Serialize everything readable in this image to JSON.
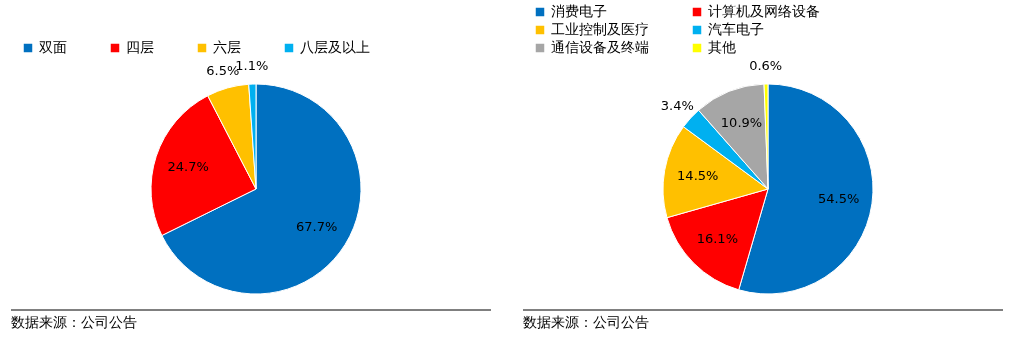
{
  "chart_data": [
    {
      "type": "pie",
      "categories": [
        "双面",
        "四层",
        "六层",
        "八层及以上"
      ],
      "values": [
        67.7,
        24.7,
        6.5,
        1.1
      ],
      "colors": [
        "#0070c0",
        "#ff0000",
        "#ffc000",
        "#00b0f0"
      ],
      "value_labels": [
        "67.7%",
        "24.7%",
        "6.5%",
        "1.1%"
      ],
      "legend": "top",
      "annotations": [
        "数据来源：公司公告"
      ]
    },
    {
      "type": "pie",
      "categories": [
        "消费电子",
        "计算机及网络设备",
        "工业控制及医疗",
        "汽车电子",
        "通信设备及终端",
        "其他"
      ],
      "values": [
        54.5,
        16.1,
        14.5,
        3.4,
        10.9,
        0.6
      ],
      "colors": [
        "#0070c0",
        "#ff0000",
        "#ffc000",
        "#00b0f0",
        "#a6a6a6",
        "#ffff00"
      ],
      "value_labels": [
        "54.5%",
        "16.1%",
        "14.5%",
        "3.4%",
        "10.9%",
        "0.6%"
      ],
      "legend": "top",
      "annotations": [
        "数据来源：公司公告"
      ]
    }
  ]
}
